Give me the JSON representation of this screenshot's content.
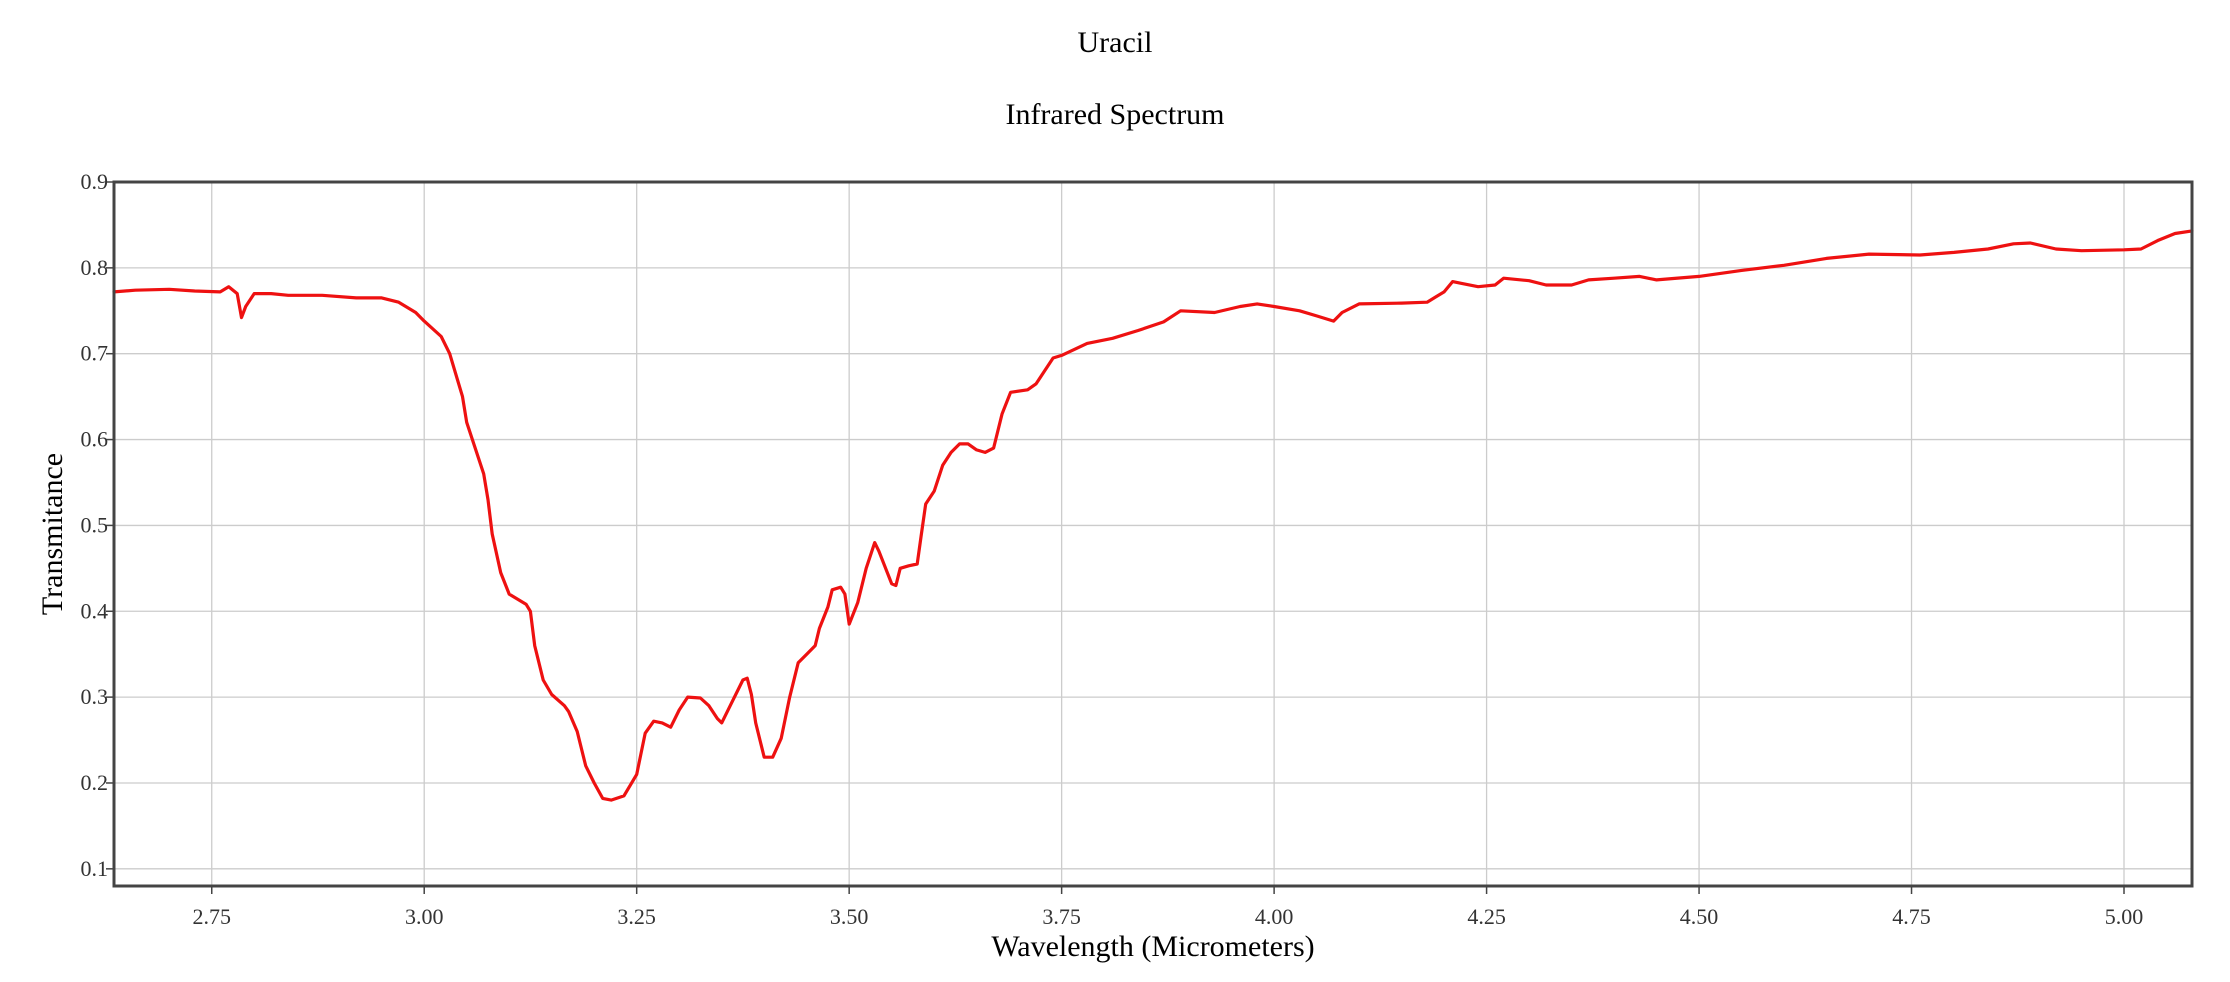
{
  "chart_data": {
    "type": "line",
    "title": "Uracil",
    "subtitle": "Infrared Spectrum",
    "xlabel": "Wavelength (Micrometers)",
    "ylabel": "Transmitance",
    "xlim": [
      2.635,
      5.08
    ],
    "ylim": [
      0.08,
      0.9
    ],
    "xticks": [
      "2.75",
      "3.00",
      "3.25",
      "3.50",
      "3.75",
      "4.00",
      "4.25",
      "4.50",
      "4.75",
      "5.00"
    ],
    "yticks": [
      "0.1",
      "0.2",
      "0.3",
      "0.4",
      "0.5",
      "0.6",
      "0.7",
      "0.8",
      "0.9"
    ],
    "grid": true,
    "legend": "none",
    "colors": {
      "series": "#ee1111",
      "grid": "#cccccc",
      "frame": "#444444"
    },
    "series": [
      {
        "points": [
          [
            2.635,
            0.772
          ],
          [
            2.66,
            0.774
          ],
          [
            2.7,
            0.775
          ],
          [
            2.73,
            0.773
          ],
          [
            2.76,
            0.772
          ],
          [
            2.77,
            0.778
          ],
          [
            2.78,
            0.77
          ],
          [
            2.785,
            0.742
          ],
          [
            2.79,
            0.755
          ],
          [
            2.8,
            0.77
          ],
          [
            2.82,
            0.77
          ],
          [
            2.84,
            0.768
          ],
          [
            2.88,
            0.768
          ],
          [
            2.92,
            0.765
          ],
          [
            2.95,
            0.765
          ],
          [
            2.97,
            0.76
          ],
          [
            2.99,
            0.748
          ],
          [
            3.0,
            0.738
          ],
          [
            3.02,
            0.72
          ],
          [
            3.03,
            0.7
          ],
          [
            3.045,
            0.65
          ],
          [
            3.05,
            0.62
          ],
          [
            3.06,
            0.59
          ],
          [
            3.07,
            0.56
          ],
          [
            3.075,
            0.53
          ],
          [
            3.08,
            0.49
          ],
          [
            3.09,
            0.445
          ],
          [
            3.1,
            0.42
          ],
          [
            3.12,
            0.408
          ],
          [
            3.125,
            0.4
          ],
          [
            3.13,
            0.36
          ],
          [
            3.14,
            0.32
          ],
          [
            3.15,
            0.303
          ],
          [
            3.165,
            0.29
          ],
          [
            3.17,
            0.283
          ],
          [
            3.18,
            0.26
          ],
          [
            3.19,
            0.22
          ],
          [
            3.2,
            0.2
          ],
          [
            3.21,
            0.182
          ],
          [
            3.22,
            0.18
          ],
          [
            3.235,
            0.185
          ],
          [
            3.25,
            0.21
          ],
          [
            3.26,
            0.258
          ],
          [
            3.27,
            0.272
          ],
          [
            3.28,
            0.27
          ],
          [
            3.29,
            0.265
          ],
          [
            3.3,
            0.285
          ],
          [
            3.31,
            0.3
          ],
          [
            3.325,
            0.299
          ],
          [
            3.335,
            0.29
          ],
          [
            3.345,
            0.275
          ],
          [
            3.35,
            0.27
          ],
          [
            3.36,
            0.29
          ],
          [
            3.375,
            0.32
          ],
          [
            3.38,
            0.322
          ],
          [
            3.385,
            0.303
          ],
          [
            3.39,
            0.27
          ],
          [
            3.4,
            0.23
          ],
          [
            3.41,
            0.23
          ],
          [
            3.42,
            0.252
          ],
          [
            3.43,
            0.3
          ],
          [
            3.44,
            0.34
          ],
          [
            3.45,
            0.35
          ],
          [
            3.46,
            0.36
          ],
          [
            3.465,
            0.38
          ],
          [
            3.475,
            0.405
          ],
          [
            3.48,
            0.425
          ],
          [
            3.49,
            0.428
          ],
          [
            3.495,
            0.42
          ],
          [
            3.5,
            0.385
          ],
          [
            3.51,
            0.41
          ],
          [
            3.52,
            0.45
          ],
          [
            3.53,
            0.48
          ],
          [
            3.535,
            0.47
          ],
          [
            3.55,
            0.432
          ],
          [
            3.555,
            0.43
          ],
          [
            3.56,
            0.45
          ],
          [
            3.57,
            0.453
          ],
          [
            3.58,
            0.455
          ],
          [
            3.585,
            0.49
          ],
          [
            3.59,
            0.525
          ],
          [
            3.6,
            0.54
          ],
          [
            3.61,
            0.57
          ],
          [
            3.62,
            0.585
          ],
          [
            3.63,
            0.595
          ],
          [
            3.64,
            0.595
          ],
          [
            3.65,
            0.588
          ],
          [
            3.66,
            0.585
          ],
          [
            3.67,
            0.59
          ],
          [
            3.68,
            0.63
          ],
          [
            3.69,
            0.655
          ],
          [
            3.71,
            0.658
          ],
          [
            3.72,
            0.665
          ],
          [
            3.73,
            0.68
          ],
          [
            3.74,
            0.695
          ],
          [
            3.75,
            0.698
          ],
          [
            3.78,
            0.712
          ],
          [
            3.81,
            0.718
          ],
          [
            3.84,
            0.727
          ],
          [
            3.87,
            0.737
          ],
          [
            3.89,
            0.75
          ],
          [
            3.93,
            0.748
          ],
          [
            3.96,
            0.755
          ],
          [
            3.98,
            0.758
          ],
          [
            4.0,
            0.755
          ],
          [
            4.03,
            0.75
          ],
          [
            4.05,
            0.744
          ],
          [
            4.07,
            0.738
          ],
          [
            4.08,
            0.748
          ],
          [
            4.1,
            0.758
          ],
          [
            4.15,
            0.759
          ],
          [
            4.18,
            0.76
          ],
          [
            4.19,
            0.766
          ],
          [
            4.2,
            0.772
          ],
          [
            4.21,
            0.784
          ],
          [
            4.22,
            0.782
          ],
          [
            4.24,
            0.778
          ],
          [
            4.26,
            0.78
          ],
          [
            4.27,
            0.788
          ],
          [
            4.3,
            0.785
          ],
          [
            4.32,
            0.78
          ],
          [
            4.35,
            0.78
          ],
          [
            4.37,
            0.786
          ],
          [
            4.4,
            0.788
          ],
          [
            4.43,
            0.79
          ],
          [
            4.45,
            0.786
          ],
          [
            4.5,
            0.79
          ],
          [
            4.55,
            0.797
          ],
          [
            4.6,
            0.803
          ],
          [
            4.65,
            0.811
          ],
          [
            4.7,
            0.816
          ],
          [
            4.76,
            0.815
          ],
          [
            4.8,
            0.818
          ],
          [
            4.84,
            0.822
          ],
          [
            4.87,
            0.828
          ],
          [
            4.89,
            0.829
          ],
          [
            4.92,
            0.822
          ],
          [
            4.95,
            0.82
          ],
          [
            5.0,
            0.821
          ],
          [
            5.02,
            0.822
          ],
          [
            5.04,
            0.832
          ],
          [
            5.06,
            0.84
          ],
          [
            5.08,
            0.843
          ]
        ]
      }
    ]
  }
}
